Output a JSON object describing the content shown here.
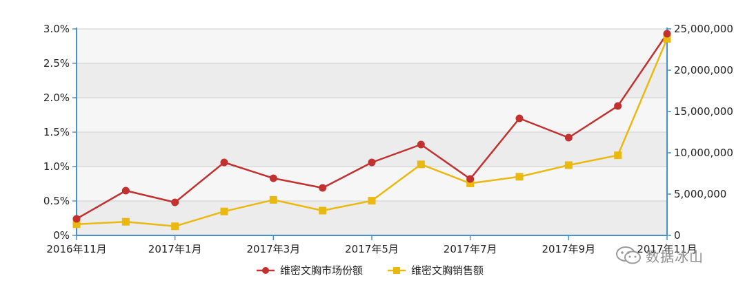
{
  "chart_data": {
    "type": "line",
    "x": [
      "2016年11月",
      "2016年12月",
      "2017年1月",
      "2017年2月",
      "2017年3月",
      "2017年4月",
      "2017年5月",
      "2017年6月",
      "2017年7月",
      "2017年8月",
      "2017年9月",
      "2017年10月",
      "2017年11月"
    ],
    "x_tick_labels": [
      "2016年11月",
      "2017年1月",
      "2017年3月",
      "2017年5月",
      "2017年7月",
      "2017年9月",
      "2017年11月"
    ],
    "y_left_ticks": [
      "0%",
      "0.5%",
      "1.0%",
      "1.5%",
      "2.0%",
      "2.5%",
      "3.0%"
    ],
    "y_right_ticks": [
      "0",
      "5,000,000",
      "10,000,000",
      "15,000,000",
      "20,000,000",
      "25,000,000"
    ],
    "y_left_range": [
      0,
      3.0
    ],
    "y_right_range": [
      0,
      25000000
    ],
    "legend_position": "bottom-center",
    "series": [
      {
        "name": "维密文胸市场份额",
        "axis": "left",
        "marker": "circle",
        "color": "#c0312f",
        "values": [
          0.24,
          0.65,
          0.48,
          1.06,
          0.83,
          0.69,
          1.06,
          1.32,
          0.82,
          1.7,
          1.42,
          1.88,
          2.93
        ]
      },
      {
        "name": "维密文胸销售额",
        "axis": "right",
        "marker": "square",
        "color": "#e9b90f",
        "values": [
          1350000,
          1650000,
          1100000,
          2900000,
          4300000,
          3000000,
          4200000,
          8600000,
          6300000,
          7100000,
          8500000,
          9700000,
          23800000
        ]
      }
    ]
  },
  "watermark": {
    "text": "数据冰山",
    "icon": "wechat-icon"
  }
}
